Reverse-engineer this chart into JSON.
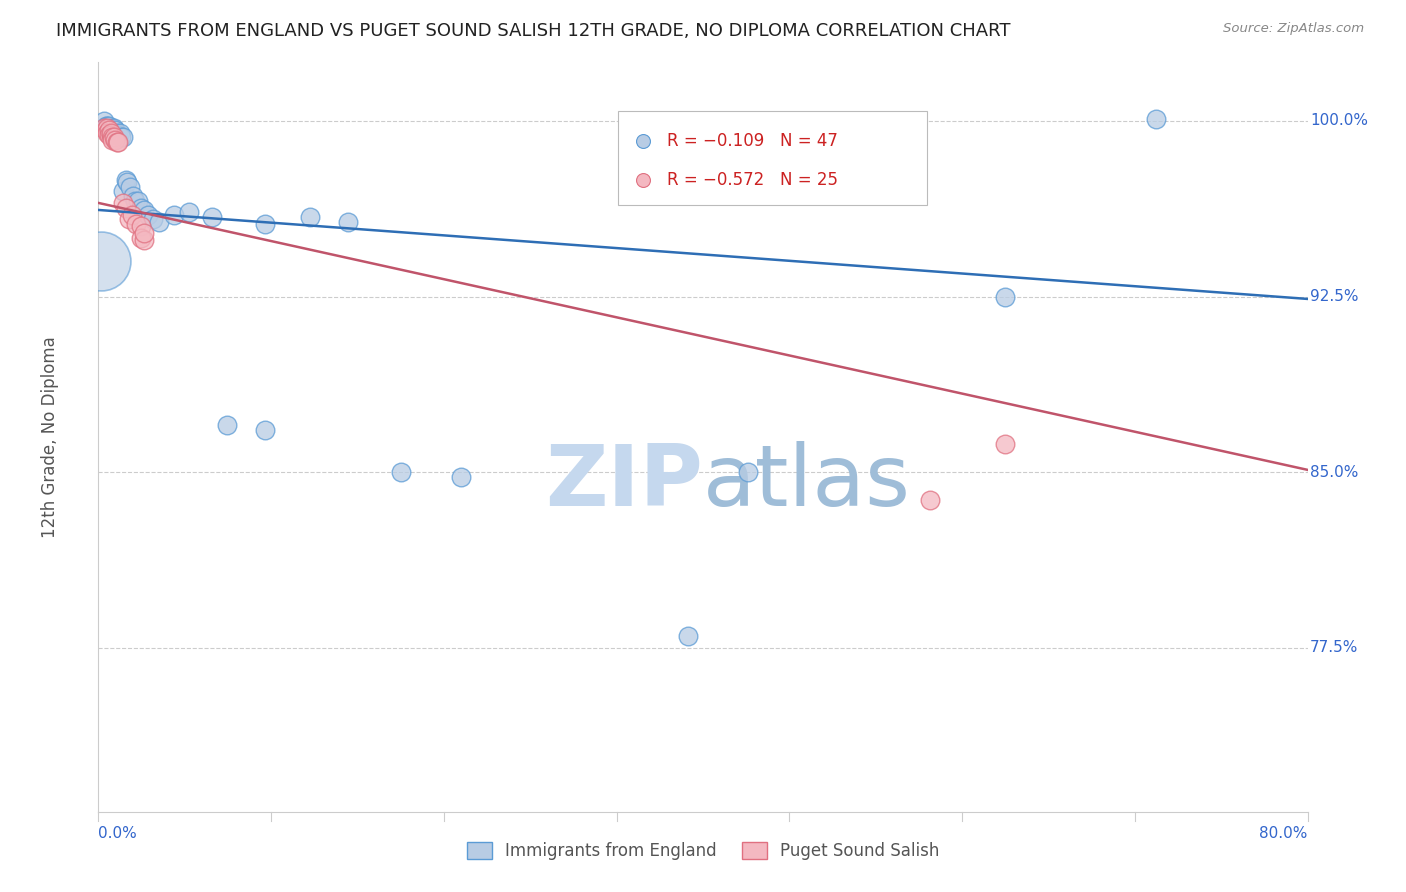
{
  "title": "IMMIGRANTS FROM ENGLAND VS PUGET SOUND SALISH 12TH GRADE, NO DIPLOMA CORRELATION CHART",
  "source": "Source: ZipAtlas.com",
  "ylabel": "12th Grade, No Diploma",
  "blue_color_face": "#b8cce4",
  "blue_color_edge": "#5b9bd5",
  "pink_color_face": "#f4b8c1",
  "pink_color_edge": "#e07080",
  "blue_line_color": "#2e6eb5",
  "pink_line_color": "#c0546a",
  "title_color": "#222222",
  "tick_color": "#3366cc",
  "grid_color": "#cccccc",
  "watermark_zip_color": "#c5d8ee",
  "watermark_atlas_color": "#9fbdd8",
  "xlim": [
    0.0,
    0.8
  ],
  "ylim": [
    0.705,
    1.025
  ],
  "ytick_values": [
    1.0,
    0.925,
    0.85,
    0.775
  ],
  "ytick_labels": [
    "100.0%",
    "92.5%",
    "85.0%",
    "77.5%"
  ],
  "xtick_values": [
    0.0,
    0.8
  ],
  "xtick_labels": [
    "0.0%",
    "80.0%"
  ],
  "blue_line_x0": 0.0,
  "blue_line_x1": 0.8,
  "blue_line_y0": 0.962,
  "blue_line_y1": 0.924,
  "pink_line_x0": 0.0,
  "pink_line_x1": 0.8,
  "pink_line_y0": 0.965,
  "pink_line_y1": 0.851,
  "legend_R_blue": "R = −0.109",
  "legend_N_blue": "N = 47",
  "legend_R_pink": "R = −0.572",
  "legend_N_pink": "N = 25",
  "blue_points": [
    [
      0.004,
      1.0
    ],
    [
      0.005,
      0.997
    ],
    [
      0.005,
      0.998
    ],
    [
      0.006,
      0.998
    ],
    [
      0.006,
      0.997
    ],
    [
      0.007,
      0.997
    ],
    [
      0.007,
      0.996
    ],
    [
      0.007,
      0.998
    ],
    [
      0.008,
      0.996
    ],
    [
      0.009,
      0.997
    ],
    [
      0.009,
      0.995
    ],
    [
      0.01,
      0.995
    ],
    [
      0.01,
      0.996
    ],
    [
      0.01,
      0.997
    ],
    [
      0.011,
      0.996
    ],
    [
      0.012,
      0.995
    ],
    [
      0.012,
      0.994
    ],
    [
      0.013,
      0.994
    ],
    [
      0.014,
      0.995
    ],
    [
      0.015,
      0.993
    ],
    [
      0.016,
      0.993
    ],
    [
      0.016,
      0.97
    ],
    [
      0.018,
      0.975
    ],
    [
      0.019,
      0.974
    ],
    [
      0.021,
      0.972
    ],
    [
      0.023,
      0.968
    ],
    [
      0.024,
      0.966
    ],
    [
      0.026,
      0.966
    ],
    [
      0.028,
      0.963
    ],
    [
      0.03,
      0.962
    ],
    [
      0.033,
      0.96
    ],
    [
      0.036,
      0.958
    ],
    [
      0.04,
      0.957
    ],
    [
      0.05,
      0.96
    ],
    [
      0.06,
      0.961
    ],
    [
      0.075,
      0.959
    ],
    [
      0.11,
      0.956
    ],
    [
      0.14,
      0.959
    ],
    [
      0.165,
      0.957
    ],
    [
      0.085,
      0.87
    ],
    [
      0.11,
      0.868
    ],
    [
      0.2,
      0.85
    ],
    [
      0.24,
      0.848
    ],
    [
      0.39,
      0.78
    ],
    [
      0.43,
      0.85
    ],
    [
      0.7,
      1.001
    ],
    [
      0.6,
      0.925
    ]
  ],
  "pink_points": [
    [
      0.004,
      0.997
    ],
    [
      0.005,
      0.996
    ],
    [
      0.006,
      0.997
    ],
    [
      0.006,
      0.995
    ],
    [
      0.007,
      0.996
    ],
    [
      0.007,
      0.994
    ],
    [
      0.008,
      0.994
    ],
    [
      0.008,
      0.995
    ],
    [
      0.009,
      0.993
    ],
    [
      0.009,
      0.992
    ],
    [
      0.01,
      0.993
    ],
    [
      0.011,
      0.992
    ],
    [
      0.012,
      0.991
    ],
    [
      0.013,
      0.991
    ],
    [
      0.016,
      0.965
    ],
    [
      0.018,
      0.963
    ],
    [
      0.02,
      0.958
    ],
    [
      0.022,
      0.96
    ],
    [
      0.025,
      0.956
    ],
    [
      0.028,
      0.955
    ],
    [
      0.028,
      0.95
    ],
    [
      0.03,
      0.949
    ],
    [
      0.03,
      0.952
    ],
    [
      0.6,
      0.862
    ],
    [
      0.55,
      0.838
    ]
  ],
  "large_blue_dot": [
    0.002,
    0.94
  ],
  "large_blue_dot_size": 1800
}
